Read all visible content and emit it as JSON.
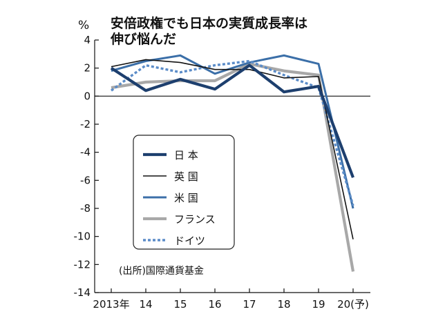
{
  "chart_data": {
    "type": "line",
    "title_lines": [
      "安倍政権でも日本の実質成長率は",
      "伸び悩んだ"
    ],
    "unit": "%",
    "x": [
      "2013年",
      "14",
      "15",
      "16",
      "17",
      "18",
      "19",
      "20(予)"
    ],
    "ylim": [
      -14,
      4
    ],
    "yticks": [
      4,
      2,
      0,
      -2,
      -4,
      -6,
      -8,
      -10,
      -12,
      -14
    ],
    "series": [
      {
        "name": "日 本",
        "color": "#1d3f6e",
        "style": "solid-thick",
        "values": [
          2.0,
          0.4,
          1.2,
          0.5,
          2.2,
          0.3,
          0.7,
          -5.8
        ]
      },
      {
        "name": "英 国",
        "color": "#111111",
        "style": "solid-thin",
        "values": [
          2.1,
          2.6,
          2.4,
          1.9,
          1.9,
          1.3,
          1.4,
          -10.2
        ]
      },
      {
        "name": "米 国",
        "color": "#3b6fa8",
        "style": "solid",
        "values": [
          1.8,
          2.5,
          2.9,
          1.6,
          2.4,
          2.9,
          2.3,
          -8.0
        ]
      },
      {
        "name": "フランス",
        "color": "#a8a8a8",
        "style": "solid-thick",
        "values": [
          0.6,
          1.0,
          1.1,
          1.1,
          2.3,
          1.8,
          1.5,
          -12.5
        ]
      },
      {
        "name": "ドイツ",
        "color": "#5b8cc8",
        "style": "dotted",
        "values": [
          0.4,
          2.2,
          1.7,
          2.2,
          2.5,
          1.5,
          0.6,
          -7.8
        ]
      }
    ],
    "source": "(出所)国際通貨基金",
    "legend_position": "center-left",
    "grid": false
  }
}
